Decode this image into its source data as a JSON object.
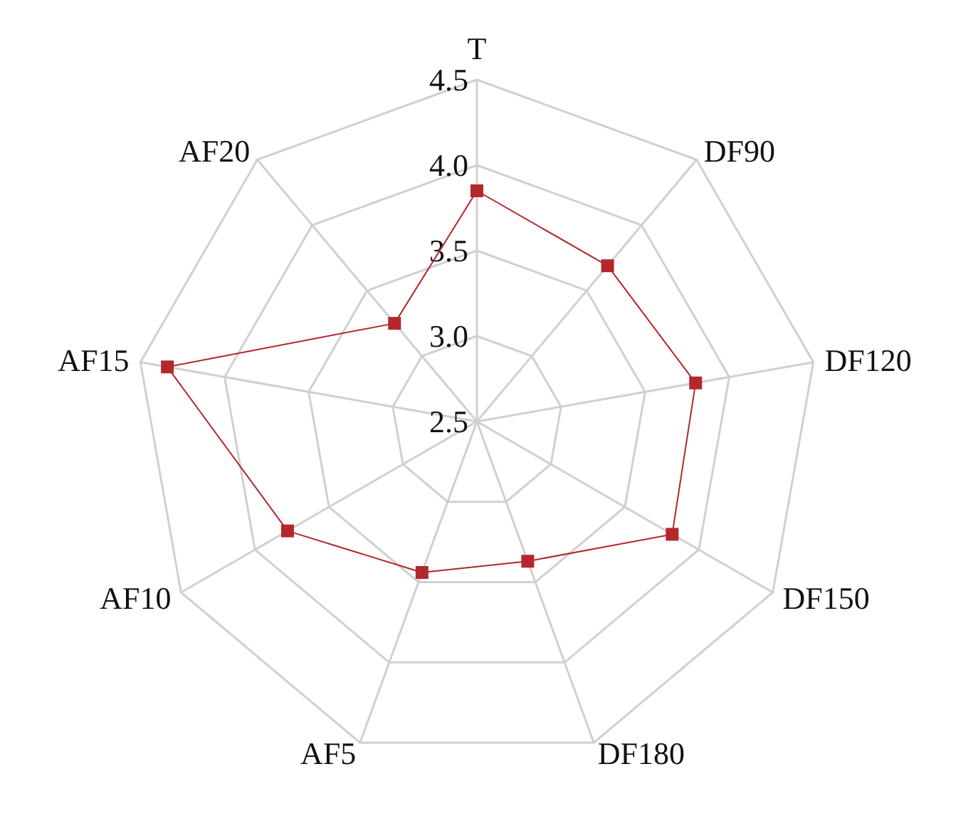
{
  "chart_data": {
    "type": "radar",
    "categories": [
      "T",
      "DF90",
      "DF120",
      "DF150",
      "DF180",
      "AF5",
      "AF10",
      "AF15",
      "AF20"
    ],
    "series": [
      {
        "color": "#b3272d",
        "values": [
          3.85,
          3.69,
          3.8,
          3.82,
          3.37,
          3.44,
          3.78,
          4.34,
          3.25
        ]
      }
    ],
    "ylim": [
      2.5,
      4.5
    ],
    "yticks": [
      {
        "value": 2.5,
        "label": "2.5"
      },
      {
        "value": 3,
        "label": "3.0"
      },
      {
        "value": 3.5,
        "label": "3.5"
      },
      {
        "value": 4,
        "label": "4.0"
      },
      {
        "value": 4.5,
        "label": "4.5"
      }
    ],
    "marker": "square",
    "grid": true
  }
}
